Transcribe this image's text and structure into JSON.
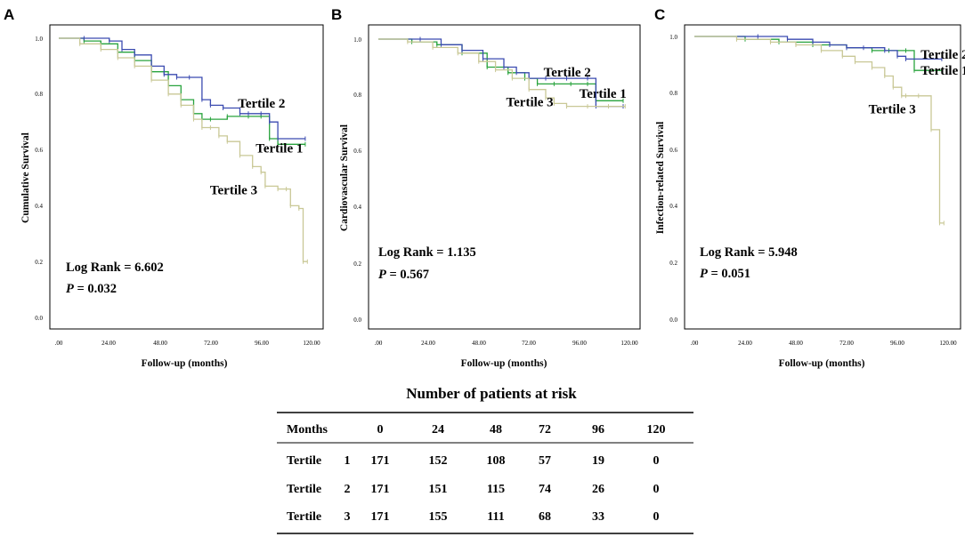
{
  "colors": {
    "tertile1": "#28a33d",
    "tertile2": "#3b4bb0",
    "tertile3": "#c9c896",
    "axis": "#000000"
  },
  "chart_data": [
    {
      "id": "A",
      "type": "line",
      "panel_label": "A",
      "ylabel": "Cumulative Survival",
      "xlabel": "Follow-up (months)",
      "xlim": [
        0,
        120
      ],
      "ylim": [
        0,
        1
      ],
      "x_tick_labels": [
        ".00",
        "24.00",
        "48.00",
        "72.00",
        "96.00",
        "120.00"
      ],
      "x_tick_values": [
        0,
        24,
        48,
        72,
        96,
        120
      ],
      "y_tick_labels": [
        "0.0",
        "0.2",
        "0.4",
        "0.6",
        "0.8",
        "1.0"
      ],
      "y_tick_values": [
        0,
        0.2,
        0.4,
        0.6,
        0.8,
        1.0
      ],
      "stat_line1": "Log Rank = 6.602",
      "stat_p_symbol": "P",
      "stat_p_value": " = 0.032",
      "series": [
        {
          "name": "Tertile 1",
          "color_key": "tertile1",
          "x": [
            0,
            12,
            20,
            28,
            36,
            44,
            52,
            58,
            64,
            68,
            72,
            80,
            90,
            96,
            100,
            104,
            117
          ],
          "y": [
            1.0,
            0.99,
            0.98,
            0.95,
            0.92,
            0.88,
            0.83,
            0.78,
            0.73,
            0.71,
            0.71,
            0.72,
            0.72,
            0.72,
            0.64,
            0.62,
            0.62
          ],
          "label_at": [
            96,
            0.61
          ]
        },
        {
          "name": "Tertile 2",
          "color_key": "tertile2",
          "x": [
            0,
            12,
            24,
            30,
            36,
            44,
            50,
            56,
            62,
            68,
            72,
            78,
            86,
            90,
            96,
            100,
            104,
            117
          ],
          "y": [
            1.0,
            1.0,
            0.99,
            0.96,
            0.94,
            0.9,
            0.87,
            0.86,
            0.86,
            0.78,
            0.76,
            0.75,
            0.73,
            0.73,
            0.73,
            0.7,
            0.64,
            0.64
          ],
          "label_at": [
            85,
            0.77
          ]
        },
        {
          "name": "Tertile 3",
          "color_key": "tertile3",
          "x": [
            0,
            10,
            20,
            28,
            36,
            44,
            52,
            58,
            64,
            68,
            72,
            76,
            80,
            86,
            92,
            96,
            98,
            104,
            108,
            110,
            114,
            116,
            118
          ],
          "y": [
            1.0,
            0.98,
            0.96,
            0.93,
            0.9,
            0.85,
            0.8,
            0.76,
            0.71,
            0.68,
            0.68,
            0.65,
            0.63,
            0.58,
            0.54,
            0.52,
            0.47,
            0.46,
            0.46,
            0.4,
            0.39,
            0.2,
            0.2
          ],
          "label_at": [
            76,
            0.46
          ]
        }
      ]
    },
    {
      "id": "B",
      "type": "line",
      "panel_label": "B",
      "ylabel": "Cardiovascular Survival",
      "xlabel": "Follow-up (months)",
      "xlim": [
        0,
        120
      ],
      "ylim": [
        0,
        1
      ],
      "x_tick_labels": [
        ".00",
        "24.00",
        "48.00",
        "72.00",
        "96.00",
        "120.00"
      ],
      "x_tick_values": [
        0,
        24,
        48,
        72,
        96,
        120
      ],
      "y_tick_labels": [
        "0.0",
        "0.2",
        "0.4",
        "0.6",
        "0.8",
        "1.0"
      ],
      "y_tick_values": [
        0,
        0.2,
        0.4,
        0.6,
        0.8,
        1.0
      ],
      "stat_line1": "Log Rank = 1.135",
      "stat_p_symbol": "P",
      "stat_p_value": " = 0.567",
      "series": [
        {
          "name": "Tertile 1",
          "color_key": "tertile1",
          "x": [
            0,
            16,
            28,
            40,
            52,
            62,
            70,
            76,
            84,
            92,
            100,
            104,
            117
          ],
          "y": [
            1.0,
            0.99,
            0.98,
            0.95,
            0.9,
            0.88,
            0.86,
            0.84,
            0.84,
            0.84,
            0.84,
            0.78,
            0.78
          ],
          "label_at": [
            96,
            0.81
          ]
        },
        {
          "name": "Tertile 2",
          "color_key": "tertile2",
          "x": [
            0,
            20,
            30,
            40,
            50,
            60,
            66,
            72,
            80,
            90,
            100,
            104,
            117
          ],
          "y": [
            1.0,
            1.0,
            0.98,
            0.96,
            0.93,
            0.9,
            0.88,
            0.86,
            0.86,
            0.86,
            0.86,
            0.76,
            0.76
          ],
          "label_at": [
            79,
            0.88
          ]
        },
        {
          "name": "Tertile 3",
          "color_key": "tertile3",
          "x": [
            0,
            14,
            26,
            38,
            48,
            56,
            64,
            72,
            80,
            84,
            90,
            100,
            110,
            118
          ],
          "y": [
            1.0,
            0.99,
            0.97,
            0.95,
            0.92,
            0.89,
            0.86,
            0.82,
            0.79,
            0.77,
            0.76,
            0.76,
            0.76,
            0.76
          ],
          "label_at": [
            67,
            0.78
          ]
        }
      ]
    },
    {
      "id": "C",
      "type": "line",
      "panel_label": "C",
      "ylabel": "Infection-related Survival",
      "xlabel": "Follow-up (months)",
      "xlim": [
        0,
        120
      ],
      "ylim": [
        0,
        1
      ],
      "x_tick_labels": [
        ".00",
        "24.00",
        "48.00",
        "72.00",
        "96.00",
        "120.00"
      ],
      "x_tick_values": [
        0,
        24,
        48,
        72,
        96,
        120
      ],
      "y_tick_labels": [
        "0.0",
        "0.2",
        "0.4",
        "0.6",
        "0.8",
        "1.0"
      ],
      "y_tick_values": [
        0,
        0.2,
        0.4,
        0.6,
        0.8,
        1.0
      ],
      "stat_line1": "Log Rank = 5.948",
      "stat_p_symbol": "P",
      "stat_p_value": " = 0.051",
      "series": [
        {
          "name": "Tertile 1",
          "color_key": "tertile1",
          "x": [
            0,
            24,
            40,
            56,
            72,
            84,
            92,
            100,
            104,
            117
          ],
          "y": [
            1.0,
            0.99,
            0.98,
            0.97,
            0.96,
            0.95,
            0.95,
            0.95,
            0.88,
            0.88
          ],
          "label_at": [
            102,
            0.89
          ]
        },
        {
          "name": "Tertile 2",
          "color_key": "tertile2",
          "x": [
            0,
            30,
            44,
            56,
            64,
            72,
            80,
            90,
            96,
            100,
            117
          ],
          "y": [
            1.0,
            1.0,
            0.99,
            0.98,
            0.97,
            0.96,
            0.96,
            0.95,
            0.93,
            0.92,
            0.92
          ],
          "label_at": [
            102,
            0.94
          ]
        },
        {
          "name": "Tertile 3",
          "color_key": "tertile3",
          "x": [
            0,
            20,
            36,
            48,
            60,
            70,
            76,
            84,
            90,
            94,
            98,
            100,
            106,
            112,
            116,
            118
          ],
          "y": [
            1.0,
            0.99,
            0.98,
            0.97,
            0.95,
            0.93,
            0.91,
            0.89,
            0.86,
            0.82,
            0.79,
            0.79,
            0.79,
            0.67,
            0.34,
            0.34
          ],
          "label_at": [
            79,
            0.76
          ]
        }
      ]
    }
  ],
  "risk_table": {
    "title": "Number of patients at risk",
    "headers": [
      "Months",
      "0",
      "24",
      "48",
      "72",
      "96",
      "120"
    ],
    "rows": [
      {
        "label": "Tertile",
        "index": "1",
        "values": [
          "171",
          "152",
          "108",
          "57",
          "19",
          "0"
        ]
      },
      {
        "label": "Tertile",
        "index": "2",
        "values": [
          "171",
          "151",
          "115",
          "74",
          "26",
          "0"
        ]
      },
      {
        "label": "Tertile",
        "index": "3",
        "values": [
          "171",
          "155",
          "111",
          "68",
          "33",
          "0"
        ]
      }
    ]
  }
}
